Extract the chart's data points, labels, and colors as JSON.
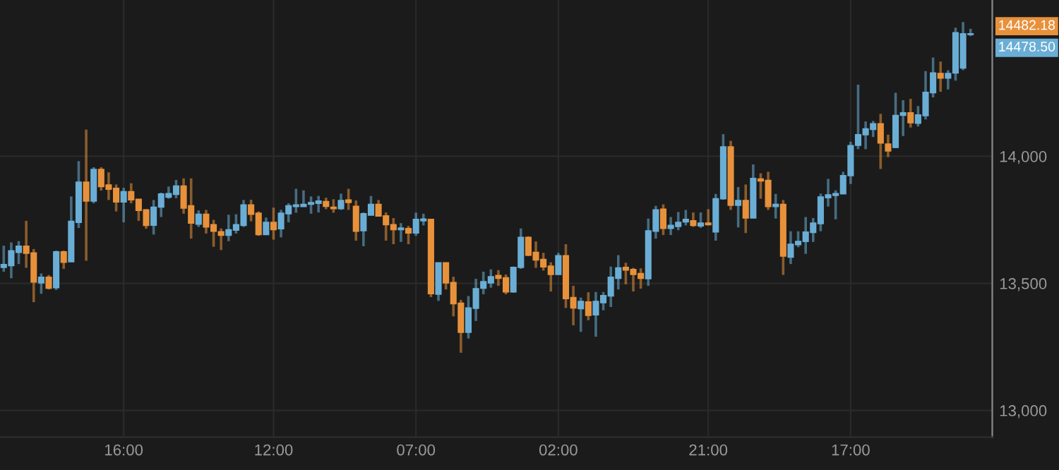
{
  "chart_data": {
    "type": "candlestick",
    "categories": [
      null,
      null,
      null,
      null,
      null,
      null,
      null,
      null,
      null,
      null,
      null,
      null,
      null,
      null,
      null,
      null,
      "16:00",
      null,
      null,
      null,
      null,
      null,
      null,
      null,
      null,
      null,
      null,
      null,
      null,
      null,
      null,
      null,
      null,
      null,
      null,
      null,
      "12:00",
      null,
      null,
      null,
      null,
      null,
      null,
      null,
      null,
      null,
      null,
      null,
      null,
      null,
      null,
      null,
      null,
      null,
      null,
      "07:00",
      null,
      null,
      null,
      null,
      null,
      null,
      null,
      null,
      null,
      null,
      null,
      null,
      null,
      null,
      null,
      null,
      null,
      null,
      "02:00",
      null,
      null,
      null,
      null,
      null,
      null,
      null,
      null,
      null,
      null,
      null,
      null,
      null,
      null,
      null,
      null,
      null,
      null,
      null,
      "21:00",
      null,
      null,
      null,
      null,
      null,
      null,
      null,
      null,
      null,
      null,
      null,
      null,
      null,
      null,
      null,
      null,
      null,
      null,
      "17:00",
      null,
      null,
      null,
      null,
      null,
      null,
      null,
      null,
      null,
      null,
      null,
      null,
      null,
      null,
      null,
      null
    ],
    "ohlc": [
      [
        13563,
        13648,
        13546,
        13574
      ],
      [
        13570,
        13661,
        13520,
        13628
      ],
      [
        13622,
        13666,
        13576,
        13646
      ],
      [
        13646,
        13746,
        13561,
        13618
      ],
      [
        13620,
        13635,
        13426,
        13505
      ],
      [
        13502,
        13539,
        13459,
        13524
      ],
      [
        13524,
        13533,
        13476,
        13481
      ],
      [
        13483,
        13629,
        13474,
        13624
      ],
      [
        13624,
        13629,
        13557,
        13583
      ],
      [
        13585,
        13842,
        13585,
        13744
      ],
      [
        13740,
        13981,
        13718,
        13898
      ],
      [
        13898,
        14105,
        13589,
        13824
      ],
      [
        13824,
        13957,
        13815,
        13948
      ],
      [
        13948,
        13957,
        13865,
        13881
      ],
      [
        13887,
        13937,
        13828,
        13870
      ],
      [
        13874,
        13889,
        13783,
        13820
      ],
      [
        13820,
        13876,
        13740,
        13861
      ],
      [
        13861,
        13894,
        13815,
        13829
      ],
      [
        13831,
        13831,
        13746,
        13787
      ],
      [
        13789,
        13792,
        13715,
        13728
      ],
      [
        13729,
        13828,
        13692,
        13800
      ],
      [
        13800,
        13857,
        13761,
        13852
      ],
      [
        13839,
        13881,
        13833,
        13853
      ],
      [
        13850,
        13907,
        13835,
        13883
      ],
      [
        13883,
        13913,
        13774,
        13796
      ],
      [
        13805,
        13913,
        13676,
        13737
      ],
      [
        13733,
        13787,
        13722,
        13772
      ],
      [
        13772,
        13789,
        13696,
        13722
      ],
      [
        13731,
        13750,
        13644,
        13705
      ],
      [
        13703,
        13716,
        13631,
        13689
      ],
      [
        13689,
        13770,
        13666,
        13711
      ],
      [
        13709,
        13772,
        13696,
        13731
      ],
      [
        13728,
        13828,
        13722,
        13809
      ],
      [
        13809,
        13829,
        13744,
        13772
      ],
      [
        13776,
        13783,
        13687,
        13692
      ],
      [
        13692,
        13759,
        13690,
        13740
      ],
      [
        13740,
        13798,
        13672,
        13711
      ],
      [
        13715,
        13789,
        13681,
        13776
      ],
      [
        13774,
        13815,
        13740,
        13805
      ],
      [
        13802,
        13872,
        13778,
        13809
      ],
      [
        13802,
        13866,
        13802,
        13811
      ],
      [
        13811,
        13842,
        13774,
        13818
      ],
      [
        13815,
        13844,
        13779,
        13824
      ],
      [
        13822,
        13837,
        13792,
        13803
      ],
      [
        13800,
        13831,
        13778,
        13794
      ],
      [
        13794,
        13853,
        13789,
        13826
      ],
      [
        13828,
        13872,
        13789,
        13818
      ],
      [
        13803,
        13826,
        13668,
        13705
      ],
      [
        13707,
        13779,
        13646,
        13774
      ],
      [
        13768,
        13844,
        13768,
        13811
      ],
      [
        13811,
        13828,
        13763,
        13765
      ],
      [
        13766,
        13779,
        13668,
        13731
      ],
      [
        13731,
        13757,
        13654,
        13711
      ],
      [
        13711,
        13737,
        13663,
        13718
      ],
      [
        13716,
        13726,
        13654,
        13698
      ],
      [
        13698,
        13778,
        13687,
        13752
      ],
      [
        13746,
        13774,
        13728,
        13753
      ],
      [
        13752,
        13752,
        13446,
        13459
      ],
      [
        13457,
        13581,
        13431,
        13581
      ],
      [
        13581,
        13581,
        13476,
        13502
      ],
      [
        13503,
        13526,
        13370,
        13420
      ],
      [
        13422,
        13435,
        13227,
        13307
      ],
      [
        13307,
        13450,
        13283,
        13403
      ],
      [
        13402,
        13518,
        13352,
        13479
      ],
      [
        13481,
        13546,
        13457,
        13507
      ],
      [
        13502,
        13555,
        13483,
        13526
      ],
      [
        13531,
        13552,
        13490,
        13520
      ],
      [
        13522,
        13535,
        13457,
        13466
      ],
      [
        13466,
        13566,
        13463,
        13563
      ],
      [
        13563,
        13716,
        13557,
        13681
      ],
      [
        13681,
        13685,
        13607,
        13611
      ],
      [
        13622,
        13665,
        13561,
        13592
      ],
      [
        13594,
        13620,
        13550,
        13565
      ],
      [
        13568,
        13583,
        13468,
        13535
      ],
      [
        13535,
        13620,
        13535,
        13609
      ],
      [
        13609,
        13654,
        13403,
        13440
      ],
      [
        13444,
        13490,
        13335,
        13403
      ],
      [
        13400,
        13444,
        13309,
        13429
      ],
      [
        13427,
        13465,
        13355,
        13374
      ],
      [
        13376,
        13466,
        13290,
        13429
      ],
      [
        13424,
        13466,
        13394,
        13452
      ],
      [
        13450,
        13566,
        13407,
        13524
      ],
      [
        13520,
        13611,
        13476,
        13561
      ],
      [
        13563,
        13581,
        13496,
        13552
      ],
      [
        13555,
        13561,
        13468,
        13535
      ],
      [
        13539,
        13559,
        13479,
        13520
      ],
      [
        13518,
        13755,
        13490,
        13707
      ],
      [
        13705,
        13805,
        13676,
        13789
      ],
      [
        13792,
        13811,
        13690,
        13716
      ],
      [
        13716,
        13761,
        13690,
        13728
      ],
      [
        13724,
        13781,
        13709,
        13740
      ],
      [
        13742,
        13789,
        13728,
        13752
      ],
      [
        13746,
        13779,
        13722,
        13728
      ],
      [
        13726,
        13779,
        13718,
        13737
      ],
      [
        13737,
        13792,
        13728,
        13731
      ],
      [
        13702,
        13852,
        13668,
        13833
      ],
      [
        13833,
        14087,
        13829,
        14037
      ],
      [
        14037,
        14061,
        13789,
        13807
      ],
      [
        13807,
        13879,
        13720,
        13826
      ],
      [
        13826,
        13889,
        13698,
        13757
      ],
      [
        13757,
        13968,
        13757,
        13913
      ],
      [
        13911,
        13933,
        13833,
        13903
      ],
      [
        13905,
        13939,
        13789,
        13802
      ],
      [
        13802,
        13852,
        13755,
        13811
      ],
      [
        13811,
        13828,
        13533,
        13607
      ],
      [
        13603,
        13705,
        13576,
        13654
      ],
      [
        13652,
        13705,
        13642,
        13665
      ],
      [
        13665,
        13761,
        13616,
        13702
      ],
      [
        13700,
        13757,
        13663,
        13737
      ],
      [
        13735,
        13853,
        13705,
        13840
      ],
      [
        13837,
        13911,
        13802,
        13848
      ],
      [
        13846,
        13866,
        13752,
        13853
      ],
      [
        13852,
        13939,
        13852,
        13924
      ],
      [
        13924,
        14057,
        13891,
        14042
      ],
      [
        14043,
        14282,
        14028,
        14085
      ],
      [
        14085,
        14137,
        14028,
        14108
      ],
      [
        14106,
        14139,
        14076,
        14128
      ],
      [
        14128,
        14167,
        13950,
        14052
      ],
      [
        14048,
        14085,
        13997,
        14021
      ],
      [
        14035,
        14250,
        14032,
        14161
      ],
      [
        14161,
        14221,
        14080,
        14171
      ],
      [
        14171,
        14226,
        14113,
        14132
      ],
      [
        14130,
        14198,
        14117,
        14163
      ],
      [
        14160,
        14335,
        14145,
        14252
      ],
      [
        14250,
        14389,
        14232,
        14328
      ],
      [
        14326,
        14373,
        14254,
        14308
      ],
      [
        14308,
        14339,
        14263,
        14326
      ],
      [
        14328,
        14506,
        14298,
        14486
      ],
      [
        14347,
        14528,
        14339,
        14482
      ],
      [
        14479,
        14502,
        14473,
        14482
      ]
    ],
    "colors": [
      "#6aaed6",
      "#6aaed6",
      "#6aaed6",
      "#e8913b",
      "#e8913b",
      "#6aaed6",
      "#e8913b",
      "#6aaed6",
      "#e8913b",
      "#6aaed6",
      "#6aaed6",
      "#e8913b",
      "#6aaed6",
      "#e8913b",
      "#e8913b",
      "#e8913b",
      "#6aaed6",
      "#e8913b",
      "#e8913b",
      "#e8913b",
      "#6aaed6",
      "#6aaed6",
      "#6aaed6",
      "#6aaed6",
      "#e8913b",
      "#e8913b",
      "#6aaed6",
      "#e8913b",
      "#e8913b",
      "#e8913b",
      "#6aaed6",
      "#6aaed6",
      "#6aaed6",
      "#e8913b",
      "#e8913b",
      "#6aaed6",
      "#e8913b",
      "#6aaed6",
      "#6aaed6",
      "#6aaed6",
      "#6aaed6",
      "#6aaed6",
      "#6aaed6",
      "#e8913b",
      "#e8913b",
      "#6aaed6",
      "#e8913b",
      "#e8913b",
      "#6aaed6",
      "#6aaed6",
      "#e8913b",
      "#e8913b",
      "#e8913b",
      "#6aaed6",
      "#e8913b",
      "#6aaed6",
      "#6aaed6",
      "#e8913b",
      "#6aaed6",
      "#e8913b",
      "#e8913b",
      "#e8913b",
      "#6aaed6",
      "#6aaed6",
      "#6aaed6",
      "#6aaed6",
      "#e8913b",
      "#e8913b",
      "#6aaed6",
      "#6aaed6",
      "#e8913b",
      "#e8913b",
      "#e8913b",
      "#e8913b",
      "#6aaed6",
      "#e8913b",
      "#e8913b",
      "#6aaed6",
      "#e8913b",
      "#6aaed6",
      "#6aaed6",
      "#6aaed6",
      "#6aaed6",
      "#e8913b",
      "#e8913b",
      "#e8913b",
      "#6aaed6",
      "#6aaed6",
      "#e8913b",
      "#6aaed6",
      "#6aaed6",
      "#6aaed6",
      "#e8913b",
      "#6aaed6",
      "#e8913b",
      "#6aaed6",
      "#6aaed6",
      "#e8913b",
      "#6aaed6",
      "#e8913b",
      "#6aaed6",
      "#e8913b",
      "#e8913b",
      "#6aaed6",
      "#e8913b",
      "#6aaed6",
      "#6aaed6",
      "#6aaed6",
      "#6aaed6",
      "#6aaed6",
      "#6aaed6",
      "#6aaed6",
      "#6aaed6",
      "#6aaed6",
      "#6aaed6",
      "#6aaed6",
      "#6aaed6",
      "#e8913b",
      "#e8913b",
      "#6aaed6",
      "#6aaed6",
      "#e8913b",
      "#6aaed6",
      "#6aaed6",
      "#6aaed6",
      "#e8913b",
      "#6aaed6",
      "#6aaed6",
      "#6aaed6",
      "#6aaed6"
    ],
    "ylim": [
      12895,
      14615
    ],
    "yticks": [
      {
        "value": 13000,
        "label": "13,000"
      },
      {
        "value": 13500,
        "label": "13,500"
      },
      {
        "value": 14000,
        "label": "14,000"
      }
    ],
    "grid": true,
    "annotations": [
      "14482.18",
      "14478.50"
    ]
  }
}
